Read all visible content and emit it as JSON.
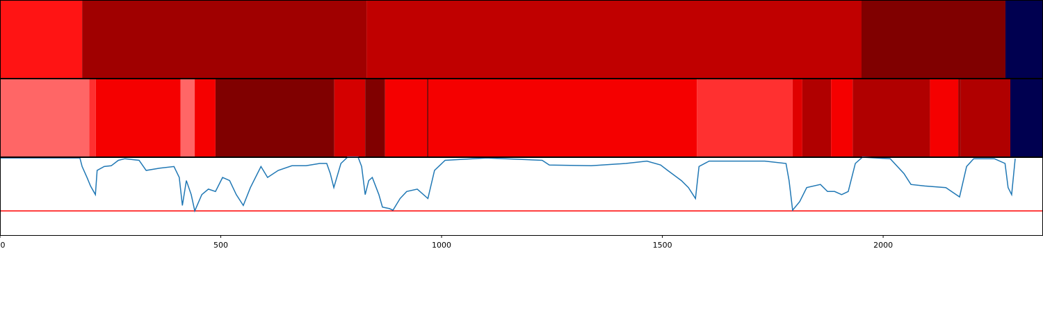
{
  "chart_data": {
    "type": "segmentation",
    "xlim": [
      0,
      2362
    ],
    "xticks": [
      0,
      500,
      1000,
      1500,
      2000
    ],
    "bands": [
      {
        "segments": [
          {
            "start": 0,
            "end": 186,
            "color": "#ff1414"
          },
          {
            "start": 186,
            "end": 830,
            "color": "#a00000"
          },
          {
            "start": 830,
            "end": 1951,
            "color": "#c00000"
          },
          {
            "start": 1951,
            "end": 2277,
            "color": "#800000"
          },
          {
            "start": 2277,
            "end": 2362,
            "color": "#000050"
          }
        ]
      },
      {
        "segments": [
          {
            "start": 0,
            "end": 202,
            "color": "#ff6666"
          },
          {
            "start": 202,
            "end": 217,
            "color": "#ff3030"
          },
          {
            "start": 217,
            "end": 409,
            "color": "#f50000"
          },
          {
            "start": 409,
            "end": 441,
            "color": "#ff6666"
          },
          {
            "start": 441,
            "end": 488,
            "color": "#f50000"
          },
          {
            "start": 488,
            "end": 757,
            "color": "#800000"
          },
          {
            "start": 757,
            "end": 827,
            "color": "#d40000"
          },
          {
            "start": 827,
            "end": 872,
            "color": "#800000"
          },
          {
            "start": 872,
            "end": 967,
            "color": "#f50000"
          },
          {
            "start": 967,
            "end": 970,
            "color": "#800000"
          },
          {
            "start": 970,
            "end": 1578,
            "color": "#f50000"
          },
          {
            "start": 1578,
            "end": 1795,
            "color": "#ff3030"
          },
          {
            "start": 1795,
            "end": 1817,
            "color": "#e00000"
          },
          {
            "start": 1817,
            "end": 1882,
            "color": "#b00000"
          },
          {
            "start": 1882,
            "end": 1931,
            "color": "#f50000"
          },
          {
            "start": 1931,
            "end": 2106,
            "color": "#b00000"
          },
          {
            "start": 2106,
            "end": 2170,
            "color": "#f50000"
          },
          {
            "start": 2170,
            "end": 2176,
            "color": "#a00000"
          },
          {
            "start": 2176,
            "end": 2288,
            "color": "#b00000"
          },
          {
            "start": 2288,
            "end": 2362,
            "color": "#000050"
          }
        ]
      }
    ],
    "line": {
      "color": "#1f77b4",
      "ylim": [
        0,
        1
      ],
      "threshold": 0.31,
      "threshold_color": "#ff0000",
      "x": [
        0,
        181,
        186,
        197,
        205,
        216,
        220,
        236,
        252,
        268,
        283,
        315,
        331,
        362,
        394,
        406,
        413,
        422,
        433,
        441,
        457,
        472,
        488,
        504,
        520,
        535,
        551,
        567,
        591,
        606,
        630,
        661,
        693,
        724,
        740,
        748,
        756,
        772,
        787,
        811,
        819,
        827,
        835,
        843,
        858,
        866,
        882,
        890,
        906,
        921,
        945,
        969,
        984,
        1008,
        1102,
        1228,
        1244,
        1339,
        1417,
        1465,
        1496,
        1512,
        1543,
        1559,
        1575,
        1583,
        1606,
        1669,
        1732,
        1780,
        1787,
        1795,
        1811,
        1827,
        1858,
        1874,
        1890,
        1906,
        1921,
        1937,
        1953,
        2016,
        2047,
        2063,
        2094,
        2142,
        2173,
        2189,
        2205,
        2252,
        2276,
        2283,
        2291,
        2299
      ],
      "values": [
        0.99,
        0.99,
        0.88,
        0.74,
        0.63,
        0.52,
        0.83,
        0.88,
        0.89,
        0.96,
        0.98,
        0.96,
        0.83,
        0.86,
        0.88,
        0.74,
        0.38,
        0.7,
        0.52,
        0.31,
        0.52,
        0.59,
        0.56,
        0.74,
        0.7,
        0.52,
        0.38,
        0.61,
        0.88,
        0.74,
        0.83,
        0.89,
        0.89,
        0.92,
        0.92,
        0.79,
        0.61,
        0.92,
        1.0,
        1.0,
        0.88,
        0.52,
        0.7,
        0.74,
        0.52,
        0.36,
        0.34,
        0.32,
        0.47,
        0.56,
        0.59,
        0.47,
        0.83,
        0.96,
        0.99,
        0.96,
        0.9,
        0.89,
        0.92,
        0.95,
        0.9,
        0.83,
        0.7,
        0.61,
        0.47,
        0.88,
        0.95,
        0.95,
        0.95,
        0.92,
        0.7,
        0.32,
        0.43,
        0.61,
        0.65,
        0.56,
        0.56,
        0.52,
        0.56,
        0.92,
        1.0,
        0.98,
        0.79,
        0.65,
        0.63,
        0.61,
        0.49,
        0.88,
        0.98,
        0.98,
        0.92,
        0.61,
        0.52,
        0.98
      ]
    }
  }
}
